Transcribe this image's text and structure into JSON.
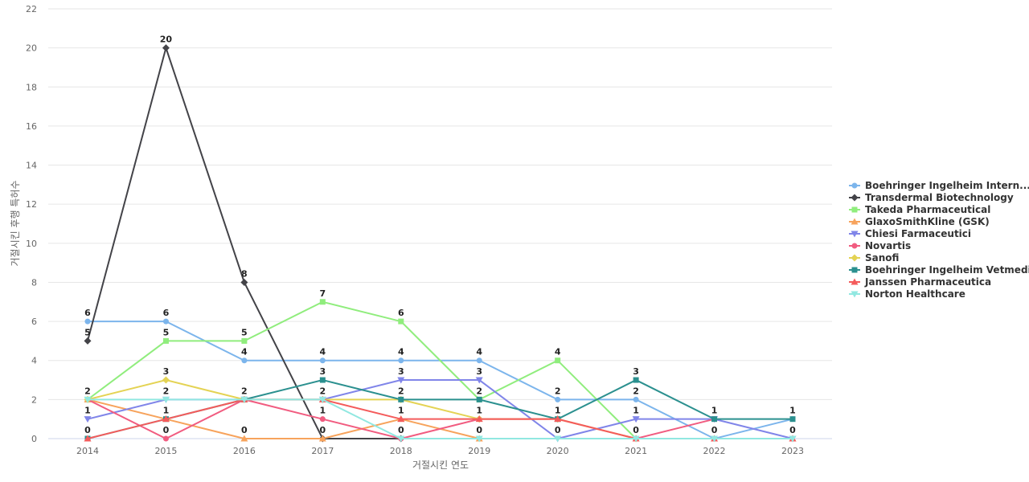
{
  "chart_data": {
    "type": "line",
    "title": "",
    "xlabel": "거절시킨 연도",
    "ylabel": "거절시킨 후행 특허수",
    "x": [
      "2014",
      "2015",
      "2016",
      "2017",
      "2018",
      "2019",
      "2020",
      "2021",
      "2022",
      "2023"
    ],
    "ylim": [
      0,
      22
    ],
    "yticks": [
      0,
      2,
      4,
      6,
      8,
      10,
      12,
      14,
      16,
      18,
      20,
      22
    ],
    "grid": true,
    "legend_position": "right",
    "series": [
      {
        "name": "Boehringer Ingelheim Intern...",
        "color": "#7cb5ec",
        "marker": "circle",
        "values": [
          6,
          6,
          4,
          4,
          4,
          4,
          2,
          2,
          0,
          1
        ]
      },
      {
        "name": "Transdermal Biotechnology",
        "color": "#434348",
        "marker": "diamond",
        "values": [
          5,
          20,
          8,
          0,
          0,
          null,
          null,
          null,
          null,
          null
        ]
      },
      {
        "name": "Takeda Pharmaceutical",
        "color": "#90ed7d",
        "marker": "square",
        "values": [
          2,
          5,
          5,
          7,
          6,
          2,
          4,
          0,
          null,
          null
        ]
      },
      {
        "name": "GlaxoSmithKline (GSK)",
        "color": "#f7a35c",
        "marker": "triangle",
        "values": [
          2,
          1,
          0,
          0,
          1,
          0,
          null,
          null,
          null,
          0
        ]
      },
      {
        "name": "Chiesi Farmaceutici",
        "color": "#8085e9",
        "marker": "triangle-down",
        "values": [
          1,
          2,
          2,
          2,
          3,
          3,
          0,
          1,
          1,
          0
        ]
      },
      {
        "name": "Novartis",
        "color": "#f15c80",
        "marker": "circle",
        "values": [
          2,
          0,
          2,
          1,
          0,
          1,
          1,
          0,
          1,
          null
        ]
      },
      {
        "name": "Sanofi",
        "color": "#e4d354",
        "marker": "diamond",
        "values": [
          2,
          3,
          2,
          2,
          2,
          1,
          1,
          0,
          null,
          null
        ]
      },
      {
        "name": "Boehringer Ingelheim Vetmedica",
        "color": "#2b908f",
        "marker": "square",
        "values": [
          0,
          1,
          2,
          3,
          2,
          2,
          1,
          3,
          1,
          1
        ]
      },
      {
        "name": "Janssen Pharmaceutica",
        "color": "#f45b5b",
        "marker": "triangle",
        "values": [
          0,
          1,
          2,
          2,
          1,
          1,
          1,
          0,
          0,
          0
        ]
      },
      {
        "name": "Norton Healthcare",
        "color": "#91e8e1",
        "marker": "triangle-down",
        "values": [
          2,
          2,
          2,
          2,
          0,
          0,
          0,
          0,
          0,
          0
        ]
      }
    ],
    "data_labels": [
      {
        "x": "2014",
        "y": 6,
        "text": "6"
      },
      {
        "x": "2014",
        "y": 5,
        "text": "5"
      },
      {
        "x": "2014",
        "y": 2,
        "text": "2"
      },
      {
        "x": "2014",
        "y": 1,
        "text": "1"
      },
      {
        "x": "2014",
        "y": 0,
        "text": "0"
      },
      {
        "x": "2015",
        "y": 20,
        "text": "20"
      },
      {
        "x": "2015",
        "y": 6,
        "text": "6"
      },
      {
        "x": "2015",
        "y": 5,
        "text": "5"
      },
      {
        "x": "2015",
        "y": 3,
        "text": "3"
      },
      {
        "x": "2015",
        "y": 2,
        "text": "2"
      },
      {
        "x": "2015",
        "y": 1,
        "text": "1"
      },
      {
        "x": "2015",
        "y": 0,
        "text": "0"
      },
      {
        "x": "2016",
        "y": 8,
        "text": "8"
      },
      {
        "x": "2016",
        "y": 5,
        "text": "5"
      },
      {
        "x": "2016",
        "y": 4,
        "text": "4"
      },
      {
        "x": "2016",
        "y": 2,
        "text": "2"
      },
      {
        "x": "2016",
        "y": 0,
        "text": "0"
      },
      {
        "x": "2017",
        "y": 7,
        "text": "7"
      },
      {
        "x": "2017",
        "y": 4,
        "text": "4"
      },
      {
        "x": "2017",
        "y": 3,
        "text": "3"
      },
      {
        "x": "2017",
        "y": 2,
        "text": "2"
      },
      {
        "x": "2017",
        "y": 1,
        "text": "1"
      },
      {
        "x": "2017",
        "y": 0,
        "text": "0"
      },
      {
        "x": "2018",
        "y": 6,
        "text": "6"
      },
      {
        "x": "2018",
        "y": 4,
        "text": "4"
      },
      {
        "x": "2018",
        "y": 3,
        "text": "3"
      },
      {
        "x": "2018",
        "y": 2,
        "text": "2"
      },
      {
        "x": "2018",
        "y": 1,
        "text": "1"
      },
      {
        "x": "2018",
        "y": 0,
        "text": "0"
      },
      {
        "x": "2019",
        "y": 4,
        "text": "4"
      },
      {
        "x": "2019",
        "y": 3,
        "text": "3"
      },
      {
        "x": "2019",
        "y": 2,
        "text": "2"
      },
      {
        "x": "2019",
        "y": 1,
        "text": "1"
      },
      {
        "x": "2019",
        "y": 0,
        "text": "0"
      },
      {
        "x": "2020",
        "y": 4,
        "text": "4"
      },
      {
        "x": "2020",
        "y": 2,
        "text": "2"
      },
      {
        "x": "2020",
        "y": 1,
        "text": "1"
      },
      {
        "x": "2020",
        "y": 0,
        "text": "0"
      },
      {
        "x": "2021",
        "y": 3,
        "text": "3"
      },
      {
        "x": "2021",
        "y": 2,
        "text": "2"
      },
      {
        "x": "2021",
        "y": 1,
        "text": "1"
      },
      {
        "x": "2021",
        "y": 0,
        "text": "0"
      },
      {
        "x": "2022",
        "y": 1,
        "text": "1"
      },
      {
        "x": "2022",
        "y": 0,
        "text": "0"
      },
      {
        "x": "2023",
        "y": 1,
        "text": "1"
      },
      {
        "x": "2023",
        "y": 0,
        "text": "0"
      }
    ]
  }
}
